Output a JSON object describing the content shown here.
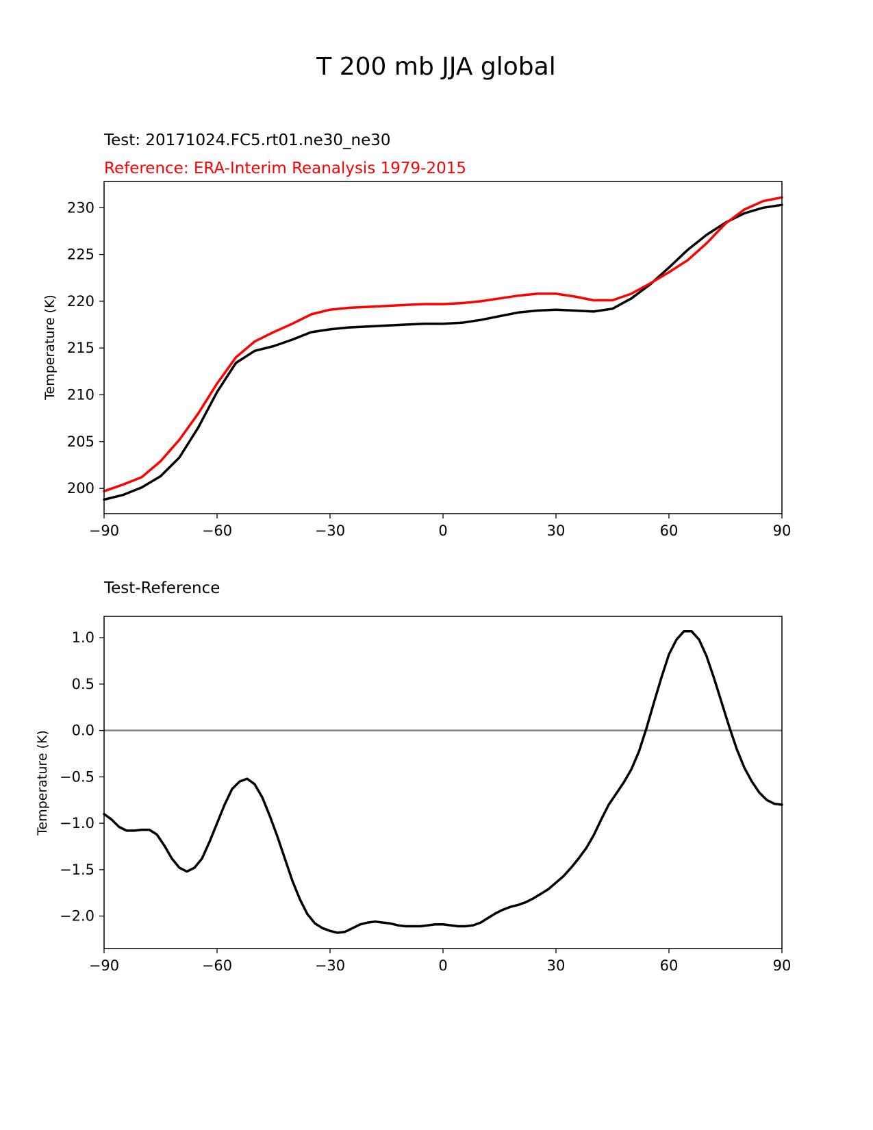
{
  "figure": {
    "title": "T 200 mb JJA global"
  },
  "colors": {
    "test": "#000000",
    "reference": "#ff0000",
    "zero_line": "#808080"
  },
  "chart_data": [
    {
      "type": "line",
      "name": "top-panel",
      "title_test": "Test: 20171024.FC5.rt01.ne30_ne30",
      "title_reference": "Reference: ERA-Interim Reanalysis 1979-2015",
      "xlabel": "",
      "ylabel": "Temperature (K)",
      "xlim": [
        -90,
        90
      ],
      "ylim": [
        197.3,
        232.8
      ],
      "xticks": [
        -90,
        -60,
        -30,
        0,
        30,
        60,
        90
      ],
      "xtick_labels": [
        "−90",
        "−60",
        "−30",
        "0",
        "30",
        "60",
        "90"
      ],
      "yticks": [
        200,
        205,
        210,
        215,
        220,
        225,
        230
      ],
      "ytick_labels": [
        "200",
        "205",
        "210",
        "215",
        "220",
        "225",
        "230"
      ],
      "grid": false,
      "series": [
        {
          "name": "Test",
          "color": "#000000",
          "x": [
            -90,
            -85,
            -80,
            -75,
            -70,
            -65,
            -60,
            -55,
            -50,
            -45,
            -40,
            -35,
            -30,
            -25,
            -20,
            -15,
            -10,
            -5,
            0,
            5,
            10,
            15,
            20,
            25,
            30,
            35,
            40,
            45,
            50,
            55,
            60,
            65,
            70,
            75,
            80,
            85,
            90
          ],
          "y": [
            198.8,
            199.3,
            200.1,
            201.3,
            203.3,
            206.5,
            210.3,
            213.4,
            214.7,
            215.2,
            215.9,
            216.7,
            217.0,
            217.2,
            217.3,
            217.4,
            217.5,
            217.6,
            217.6,
            217.7,
            218.0,
            218.4,
            218.8,
            219.0,
            219.1,
            219.0,
            218.9,
            219.2,
            220.3,
            221.8,
            223.6,
            225.5,
            227.1,
            228.4,
            229.4,
            230.0,
            230.3
          ]
        },
        {
          "name": "Reference",
          "color": "#ff0000",
          "x": [
            -90,
            -85,
            -80,
            -75,
            -70,
            -65,
            -60,
            -55,
            -50,
            -45,
            -40,
            -35,
            -30,
            -25,
            -20,
            -15,
            -10,
            -5,
            0,
            5,
            10,
            15,
            20,
            25,
            30,
            35,
            40,
            45,
            50,
            55,
            60,
            65,
            70,
            75,
            80,
            85,
            90
          ],
          "y": [
            199.7,
            200.4,
            201.2,
            202.9,
            205.2,
            208.0,
            211.2,
            214.0,
            215.7,
            216.7,
            217.6,
            218.6,
            219.1,
            219.3,
            219.4,
            219.5,
            219.6,
            219.7,
            219.7,
            219.8,
            220.0,
            220.3,
            220.6,
            220.8,
            220.8,
            220.5,
            220.1,
            220.1,
            220.8,
            221.9,
            223.1,
            224.4,
            226.2,
            228.3,
            229.8,
            230.7,
            231.1
          ]
        }
      ]
    },
    {
      "type": "line",
      "name": "bottom-panel",
      "title": "Test-Reference",
      "xlabel": "",
      "ylabel": "Temperature (K)",
      "xlim": [
        -90,
        90
      ],
      "ylim": [
        -2.35,
        1.23
      ],
      "xticks": [
        -90,
        -60,
        -30,
        0,
        30,
        60,
        90
      ],
      "xtick_labels": [
        "−90",
        "−60",
        "−30",
        "0",
        "30",
        "60",
        "90"
      ],
      "yticks": [
        -2.0,
        -1.5,
        -1.0,
        -0.5,
        0.0,
        0.5,
        1.0
      ],
      "ytick_labels": [
        "−2.0",
        "−1.5",
        "−1.0",
        "−0.5",
        "0.0",
        "0.5",
        "1.0"
      ],
      "grid": false,
      "zero_line": 0.0,
      "series": [
        {
          "name": "Test-Reference",
          "color": "#000000",
          "x": [
            -90,
            -88,
            -86,
            -84,
            -82,
            -80,
            -78,
            -76,
            -74,
            -72,
            -70,
            -68,
            -66,
            -64,
            -62,
            -60,
            -58,
            -56,
            -54,
            -52,
            -50,
            -48,
            -46,
            -44,
            -42,
            -40,
            -38,
            -36,
            -34,
            -32,
            -30,
            -28,
            -26,
            -24,
            -22,
            -20,
            -18,
            -16,
            -14,
            -12,
            -10,
            -8,
            -6,
            -4,
            -2,
            0,
            2,
            4,
            6,
            8,
            10,
            12,
            14,
            16,
            18,
            20,
            22,
            24,
            26,
            28,
            30,
            32,
            34,
            36,
            38,
            40,
            42,
            44,
            46,
            48,
            50,
            52,
            54,
            56,
            58,
            60,
            62,
            64,
            66,
            68,
            70,
            72,
            74,
            76,
            78,
            80,
            82,
            84,
            86,
            88,
            90
          ],
          "y": [
            -0.9,
            -0.96,
            -1.04,
            -1.08,
            -1.08,
            -1.07,
            -1.07,
            -1.12,
            -1.24,
            -1.38,
            -1.48,
            -1.52,
            -1.48,
            -1.38,
            -1.2,
            -1.0,
            -0.8,
            -0.63,
            -0.55,
            -0.52,
            -0.58,
            -0.72,
            -0.92,
            -1.14,
            -1.38,
            -1.62,
            -1.82,
            -1.98,
            -2.08,
            -2.13,
            -2.16,
            -2.18,
            -2.17,
            -2.13,
            -2.09,
            -2.07,
            -2.06,
            -2.07,
            -2.08,
            -2.1,
            -2.11,
            -2.11,
            -2.11,
            -2.1,
            -2.09,
            -2.09,
            -2.1,
            -2.11,
            -2.11,
            -2.1,
            -2.07,
            -2.02,
            -1.97,
            -1.93,
            -1.9,
            -1.88,
            -1.85,
            -1.81,
            -1.76,
            -1.71,
            -1.64,
            -1.57,
            -1.48,
            -1.38,
            -1.27,
            -1.13,
            -0.96,
            -0.8,
            -0.68,
            -0.56,
            -0.42,
            -0.23,
            0.02,
            0.3,
            0.57,
            0.82,
            0.98,
            1.07,
            1.07,
            0.98,
            0.8,
            0.56,
            0.3,
            0.04,
            -0.2,
            -0.4,
            -0.55,
            -0.67,
            -0.75,
            -0.79,
            -0.8
          ]
        }
      ]
    }
  ]
}
